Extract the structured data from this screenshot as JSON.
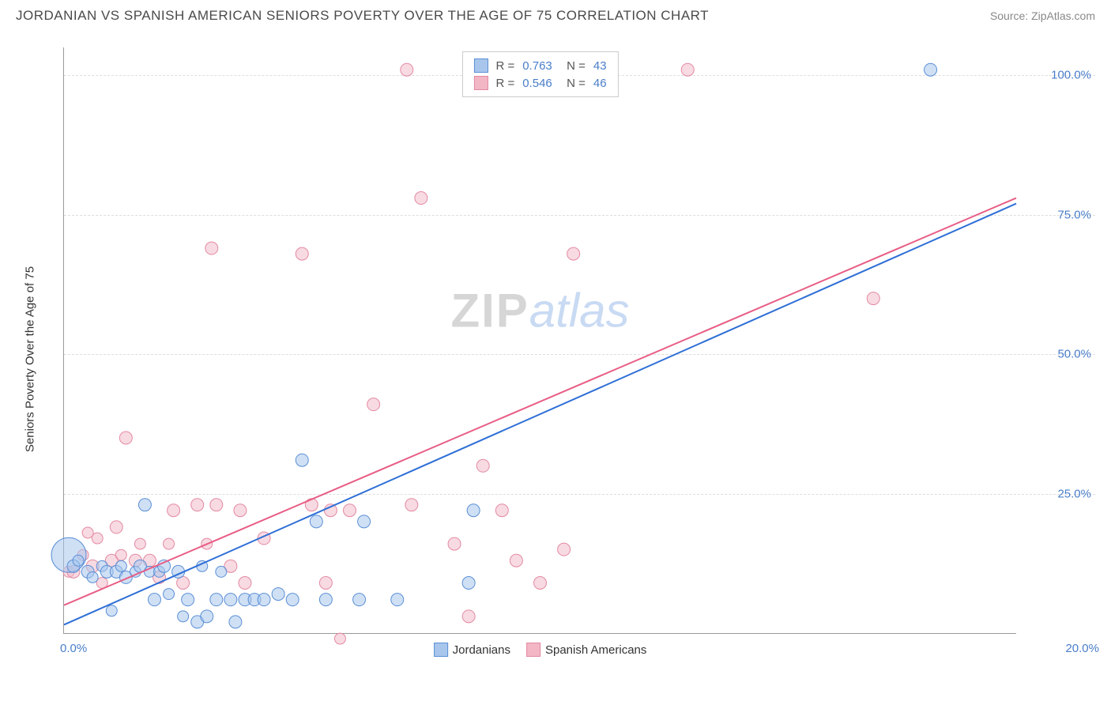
{
  "header": {
    "title": "JORDANIAN VS SPANISH AMERICAN SENIORS POVERTY OVER THE AGE OF 75 CORRELATION CHART",
    "source_label": "Source:",
    "source_value": "ZipAtlas.com"
  },
  "chart": {
    "type": "scatter",
    "y_axis_label": "Seniors Poverty Over the Age of 75",
    "xlim": [
      0,
      20
    ],
    "ylim": [
      0,
      105
    ],
    "x_tick_labels": [
      "0.0%",
      "20.0%"
    ],
    "y_ticks": [
      {
        "v": 25,
        "label": "25.0%"
      },
      {
        "v": 50,
        "label": "50.0%"
      },
      {
        "v": 75,
        "label": "75.0%"
      },
      {
        "v": 100,
        "label": "100.0%"
      }
    ],
    "background_color": "#ffffff",
    "grid_color": "#dddddd",
    "axis_color": "#999999",
    "series": [
      {
        "name": "Jordanians",
        "fill": "#a8c6ec",
        "stroke": "#5b8fd6",
        "fill_opacity": 0.55,
        "line_color": "#2e6fd6",
        "line_width": 2,
        "trend": {
          "x1": 0,
          "y1": 1.5,
          "x2": 20,
          "y2": 77
        },
        "R": "0.763",
        "N": "43",
        "points": [
          {
            "x": 0.1,
            "y": 14,
            "r": 22
          },
          {
            "x": 0.2,
            "y": 12,
            "r": 8
          },
          {
            "x": 0.3,
            "y": 13,
            "r": 7
          },
          {
            "x": 0.5,
            "y": 11,
            "r": 8
          },
          {
            "x": 0.6,
            "y": 10,
            "r": 7
          },
          {
            "x": 0.8,
            "y": 12,
            "r": 7
          },
          {
            "x": 0.9,
            "y": 11,
            "r": 8
          },
          {
            "x": 1.0,
            "y": 4,
            "r": 7
          },
          {
            "x": 1.1,
            "y": 11,
            "r": 8
          },
          {
            "x": 1.2,
            "y": 12,
            "r": 7
          },
          {
            "x": 1.3,
            "y": 10,
            "r": 8
          },
          {
            "x": 1.5,
            "y": 11,
            "r": 7
          },
          {
            "x": 1.6,
            "y": 12,
            "r": 8
          },
          {
            "x": 1.7,
            "y": 23,
            "r": 8
          },
          {
            "x": 1.8,
            "y": 11,
            "r": 7
          },
          {
            "x": 1.9,
            "y": 6,
            "r": 8
          },
          {
            "x": 2.0,
            "y": 11,
            "r": 7
          },
          {
            "x": 2.1,
            "y": 12,
            "r": 8
          },
          {
            "x": 2.2,
            "y": 7,
            "r": 7
          },
          {
            "x": 2.4,
            "y": 11,
            "r": 8
          },
          {
            "x": 2.5,
            "y": 3,
            "r": 7
          },
          {
            "x": 2.6,
            "y": 6,
            "r": 8
          },
          {
            "x": 2.8,
            "y": 2,
            "r": 8
          },
          {
            "x": 2.9,
            "y": 12,
            "r": 7
          },
          {
            "x": 3.0,
            "y": 3,
            "r": 8
          },
          {
            "x": 3.2,
            "y": 6,
            "r": 8
          },
          {
            "x": 3.3,
            "y": 11,
            "r": 7
          },
          {
            "x": 3.5,
            "y": 6,
            "r": 8
          },
          {
            "x": 3.6,
            "y": 2,
            "r": 8
          },
          {
            "x": 3.8,
            "y": 6,
            "r": 8
          },
          {
            "x": 4.0,
            "y": 6,
            "r": 8
          },
          {
            "x": 4.2,
            "y": 6,
            "r": 8
          },
          {
            "x": 4.5,
            "y": 7,
            "r": 8
          },
          {
            "x": 4.8,
            "y": 6,
            "r": 8
          },
          {
            "x": 5.0,
            "y": 31,
            "r": 8
          },
          {
            "x": 5.3,
            "y": 20,
            "r": 8
          },
          {
            "x": 5.5,
            "y": 6,
            "r": 8
          },
          {
            "x": 6.2,
            "y": 6,
            "r": 8
          },
          {
            "x": 6.3,
            "y": 20,
            "r": 8
          },
          {
            "x": 7.0,
            "y": 6,
            "r": 8
          },
          {
            "x": 8.5,
            "y": 9,
            "r": 8
          },
          {
            "x": 8.6,
            "y": 22,
            "r": 8
          },
          {
            "x": 18.2,
            "y": 101,
            "r": 8
          }
        ]
      },
      {
        "name": "Spanish Americans",
        "fill": "#f2b6c5",
        "stroke": "#e38aa2",
        "fill_opacity": 0.5,
        "line_color": "#e85d85",
        "line_width": 2,
        "trend": {
          "x1": 0,
          "y1": 5,
          "x2": 20,
          "y2": 78
        },
        "R": "0.546",
        "N": "46",
        "points": [
          {
            "x": 0.1,
            "y": 11,
            "r": 7
          },
          {
            "x": 0.2,
            "y": 11,
            "r": 8
          },
          {
            "x": 0.4,
            "y": 14,
            "r": 7
          },
          {
            "x": 0.5,
            "y": 18,
            "r": 7
          },
          {
            "x": 0.6,
            "y": 12,
            "r": 8
          },
          {
            "x": 0.7,
            "y": 17,
            "r": 7
          },
          {
            "x": 0.8,
            "y": 9,
            "r": 7
          },
          {
            "x": 1.0,
            "y": 13,
            "r": 8
          },
          {
            "x": 1.1,
            "y": 19,
            "r": 8
          },
          {
            "x": 1.2,
            "y": 14,
            "r": 7
          },
          {
            "x": 1.3,
            "y": 35,
            "r": 8
          },
          {
            "x": 1.5,
            "y": 13,
            "r": 8
          },
          {
            "x": 1.6,
            "y": 16,
            "r": 7
          },
          {
            "x": 1.8,
            "y": 13,
            "r": 8
          },
          {
            "x": 2.0,
            "y": 10,
            "r": 8
          },
          {
            "x": 2.2,
            "y": 16,
            "r": 7
          },
          {
            "x": 2.3,
            "y": 22,
            "r": 8
          },
          {
            "x": 2.5,
            "y": 9,
            "r": 8
          },
          {
            "x": 2.8,
            "y": 23,
            "r": 8
          },
          {
            "x": 3.0,
            "y": 16,
            "r": 7
          },
          {
            "x": 3.1,
            "y": 69,
            "r": 8
          },
          {
            "x": 3.2,
            "y": 23,
            "r": 8
          },
          {
            "x": 3.5,
            "y": 12,
            "r": 8
          },
          {
            "x": 3.7,
            "y": 22,
            "r": 8
          },
          {
            "x": 3.8,
            "y": 9,
            "r": 8
          },
          {
            "x": 4.2,
            "y": 17,
            "r": 8
          },
          {
            "x": 5.0,
            "y": 68,
            "r": 8
          },
          {
            "x": 5.2,
            "y": 23,
            "r": 8
          },
          {
            "x": 5.5,
            "y": 9,
            "r": 8
          },
          {
            "x": 5.6,
            "y": 22,
            "r": 8
          },
          {
            "x": 5.8,
            "y": -1,
            "r": 7
          },
          {
            "x": 6.0,
            "y": 22,
            "r": 8
          },
          {
            "x": 6.5,
            "y": 41,
            "r": 8
          },
          {
            "x": 7.2,
            "y": 101,
            "r": 8
          },
          {
            "x": 7.3,
            "y": 23,
            "r": 8
          },
          {
            "x": 7.5,
            "y": 78,
            "r": 8
          },
          {
            "x": 8.2,
            "y": 16,
            "r": 8
          },
          {
            "x": 8.5,
            "y": 3,
            "r": 8
          },
          {
            "x": 8.8,
            "y": 30,
            "r": 8
          },
          {
            "x": 9.2,
            "y": 22,
            "r": 8
          },
          {
            "x": 9.5,
            "y": 13,
            "r": 8
          },
          {
            "x": 10.0,
            "y": 9,
            "r": 8
          },
          {
            "x": 10.5,
            "y": 15,
            "r": 8
          },
          {
            "x": 10.7,
            "y": 68,
            "r": 8
          },
          {
            "x": 13.1,
            "y": 101,
            "r": 8
          },
          {
            "x": 17.0,
            "y": 60,
            "r": 8
          }
        ]
      }
    ],
    "watermark": {
      "part1": "ZIP",
      "part2": "atlas"
    }
  },
  "legend_bottom": {
    "series1_label": "Jordanians",
    "series2_label": "Spanish Americans"
  }
}
